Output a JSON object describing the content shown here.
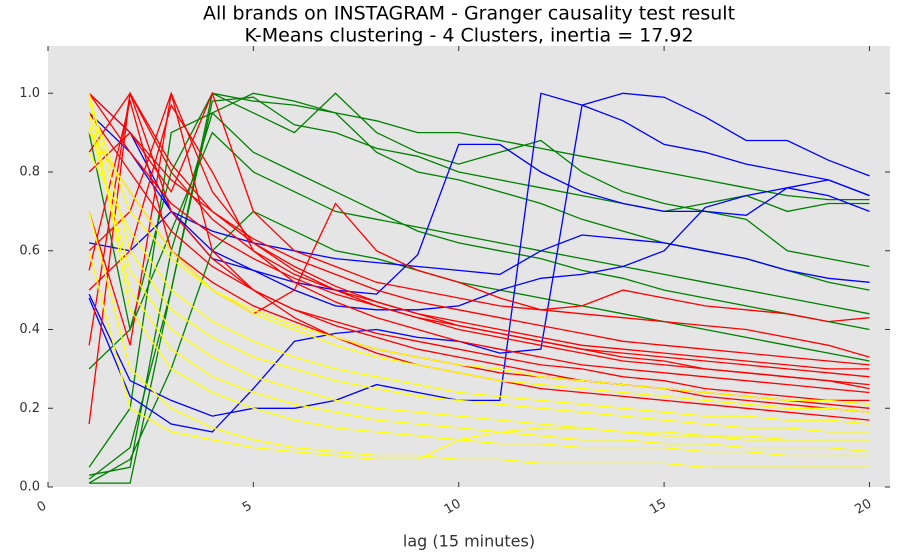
{
  "chart_data": {
    "type": "line",
    "title": "All brands on INSTAGRAM - Granger causality test result",
    "subtitle": "K-Means clustering - 4 Clusters, inertia = 17.92",
    "xlabel": "lag (15 minutes)",
    "x": [
      1,
      2,
      3,
      4,
      5,
      6,
      7,
      8,
      9,
      10,
      11,
      12,
      13,
      14,
      15,
      16,
      17,
      18,
      19,
      20
    ],
    "xlim": [
      0,
      20.5
    ],
    "xticks": [
      0,
      5,
      10,
      15,
      20
    ],
    "ylim": [
      0,
      1.12
    ],
    "yticks": [
      {
        "value": 0,
        "label": "0.0"
      },
      {
        "value": 0.2,
        "label": "0.2"
      },
      {
        "value": 0.4,
        "label": "0.4"
      },
      {
        "value": 0.6,
        "label": "0.6"
      },
      {
        "value": 0.8,
        "label": "0.8"
      },
      {
        "value": 1,
        "label": "1.0"
      }
    ],
    "grid": false,
    "series": [
      {
        "color": "#008000",
        "values": [
          0.01,
          0.01,
          0.5,
          1.0,
          0.98,
          0.97,
          0.95,
          0.93,
          0.9,
          0.9,
          0.88,
          0.86,
          0.84,
          0.82,
          0.8,
          0.78,
          0.76,
          0.74,
          0.73,
          0.73
        ]
      },
      {
        "color": "#008000",
        "values": [
          0.03,
          0.05,
          0.6,
          0.95,
          1.0,
          0.98,
          0.95,
          0.85,
          0.8,
          0.78,
          0.75,
          0.72,
          0.68,
          0.65,
          0.62,
          0.6,
          0.58,
          0.55,
          0.52,
          0.5
        ]
      },
      {
        "color": "#008000",
        "values": [
          0.3,
          0.4,
          0.8,
          1.0,
          0.95,
          0.9,
          1.0,
          0.9,
          0.85,
          0.82,
          0.85,
          0.88,
          0.8,
          0.75,
          0.72,
          0.7,
          0.68,
          0.6,
          0.58,
          0.56
        ]
      },
      {
        "color": "#008000",
        "values": [
          0.05,
          0.2,
          0.9,
          0.95,
          0.85,
          0.8,
          0.75,
          0.7,
          0.65,
          0.62,
          0.6,
          0.58,
          0.55,
          0.53,
          0.5,
          0.48,
          0.46,
          0.44,
          0.42,
          0.4
        ]
      },
      {
        "color": "#008000",
        "values": [
          0.01,
          0.07,
          0.3,
          0.6,
          0.7,
          0.65,
          0.6,
          0.58,
          0.55,
          0.52,
          0.5,
          0.48,
          0.46,
          0.44,
          0.42,
          0.4,
          0.38,
          0.36,
          0.34,
          0.32
        ]
      },
      {
        "color": "#008000",
        "values": [
          0.9,
          0.4,
          0.65,
          0.9,
          0.8,
          0.75,
          0.7,
          0.68,
          0.66,
          0.64,
          0.62,
          0.6,
          0.58,
          0.56,
          0.54,
          0.52,
          0.5,
          0.48,
          0.46,
          0.44
        ]
      },
      {
        "color": "#008000",
        "values": [
          0.02,
          0.1,
          0.5,
          0.98,
          0.99,
          0.92,
          0.9,
          0.86,
          0.84,
          0.8,
          0.78,
          0.76,
          0.74,
          0.72,
          0.7,
          0.72,
          0.74,
          0.7,
          0.72,
          0.72
        ]
      },
      {
        "color": "#0000ff",
        "values": [
          0.49,
          0.27,
          0.22,
          0.18,
          0.2,
          0.2,
          0.22,
          0.26,
          0.24,
          0.22,
          0.22,
          1.0,
          0.97,
          0.93,
          0.87,
          0.85,
          0.82,
          0.8,
          0.78,
          0.74
        ]
      },
      {
        "color": "#0000ff",
        "values": [
          0.48,
          0.23,
          0.16,
          0.14,
          0.25,
          0.37,
          0.39,
          0.4,
          0.38,
          0.37,
          0.34,
          0.35,
          0.97,
          1.0,
          0.99,
          0.94,
          0.88,
          0.88,
          0.83,
          0.79
        ]
      },
      {
        "color": "#0000ff",
        "values": [
          1.0,
          0.9,
          0.7,
          0.6,
          0.55,
          0.52,
          0.5,
          0.49,
          0.59,
          0.87,
          0.87,
          0.8,
          0.75,
          0.72,
          0.7,
          0.7,
          0.69,
          0.76,
          0.74,
          0.7
        ]
      },
      {
        "color": "#0000ff",
        "values": [
          0.62,
          0.6,
          0.7,
          0.58,
          0.55,
          0.5,
          0.46,
          0.45,
          0.45,
          0.46,
          0.5,
          0.53,
          0.54,
          0.56,
          0.6,
          0.71,
          0.74,
          0.76,
          0.78,
          0.74
        ]
      },
      {
        "color": "#0000ff",
        "values": [
          0.95,
          0.85,
          0.7,
          0.65,
          0.62,
          0.6,
          0.58,
          0.57,
          0.56,
          0.55,
          0.54,
          0.6,
          0.64,
          0.63,
          0.62,
          0.6,
          0.58,
          0.55,
          0.53,
          0.52
        ]
      },
      {
        "color": "#ff0000",
        "values": [
          1.0,
          0.85,
          0.72,
          0.64,
          0.58,
          0.53,
          0.49,
          0.46,
          0.43,
          0.41,
          0.39,
          0.37,
          0.35,
          0.34,
          0.33,
          0.32,
          0.31,
          0.3,
          0.29,
          0.28
        ]
      },
      {
        "color": "#ff0000",
        "values": [
          0.36,
          1.0,
          0.8,
          0.68,
          0.6,
          0.54,
          0.5,
          0.47,
          0.44,
          0.42,
          0.4,
          0.38,
          0.36,
          0.35,
          0.34,
          0.33,
          0.32,
          0.31,
          0.3,
          0.3
        ]
      },
      {
        "color": "#ff0000",
        "values": [
          0.6,
          0.7,
          1.0,
          0.75,
          0.62,
          0.55,
          0.5,
          0.46,
          0.43,
          0.4,
          0.38,
          0.36,
          0.34,
          0.32,
          0.31,
          0.3,
          0.29,
          0.28,
          0.27,
          0.26
        ]
      },
      {
        "color": "#ff0000",
        "values": [
          0.9,
          0.75,
          0.6,
          0.52,
          0.46,
          0.42,
          0.38,
          0.35,
          0.33,
          0.31,
          0.29,
          0.28,
          0.27,
          0.26,
          0.25,
          0.24,
          0.23,
          0.22,
          0.21,
          0.2
        ]
      },
      {
        "color": "#ff0000",
        "values": [
          0.16,
          1.0,
          0.7,
          0.58,
          0.5,
          0.45,
          0.41,
          0.38,
          0.35,
          0.33,
          0.31,
          0.29,
          0.27,
          0.26,
          0.25,
          0.23,
          0.22,
          0.21,
          0.2,
          0.19
        ]
      },
      {
        "color": "#ff0000",
        "values": [
          0.8,
          0.9,
          0.75,
          1.0,
          0.7,
          0.6,
          0.56,
          0.52,
          0.5,
          0.48,
          0.46,
          0.45,
          0.44,
          0.43,
          0.42,
          0.41,
          0.4,
          0.38,
          0.36,
          0.33
        ]
      },
      {
        "color": "#ff0000",
        "values": [
          0.95,
          0.8,
          0.65,
          0.56,
          0.5,
          0.45,
          0.42,
          0.39,
          0.37,
          0.35,
          0.33,
          0.31,
          0.3,
          0.28,
          0.27,
          0.25,
          0.24,
          0.23,
          0.22,
          0.22
        ]
      },
      {
        "color": "#ff0000",
        "values": [
          0.55,
          0.98,
          0.6,
          0.5,
          0.44,
          0.5,
          0.72,
          0.6,
          0.55,
          0.52,
          0.48,
          0.45,
          0.46,
          0.5,
          0.48,
          0.46,
          0.45,
          0.44,
          0.42,
          0.43
        ]
      },
      {
        "color": "#ff0000",
        "values": [
          1.0,
          0.9,
          0.78,
          0.7,
          0.63,
          0.58,
          0.54,
          0.5,
          0.47,
          0.45,
          0.43,
          0.41,
          0.39,
          0.37,
          0.36,
          0.35,
          0.34,
          0.33,
          0.32,
          0.31
        ]
      },
      {
        "color": "#ff0000",
        "values": [
          0.7,
          0.36,
          1.0,
          0.6,
          0.5,
          0.43,
          0.38,
          0.34,
          0.31,
          0.29,
          0.27,
          0.25,
          0.24,
          0.23,
          0.22,
          0.21,
          0.2,
          0.19,
          0.18,
          0.17
        ]
      },
      {
        "color": "#ff0000",
        "values": [
          0.85,
          1.0,
          0.82,
          0.7,
          0.62,
          0.56,
          0.51,
          0.47,
          0.44,
          0.41,
          0.39,
          0.37,
          0.35,
          0.33,
          0.32,
          0.3,
          0.29,
          0.28,
          0.27,
          0.25
        ]
      },
      {
        "color": "#ff0000",
        "values": [
          0.5,
          0.6,
          0.97,
          0.8,
          0.6,
          0.52,
          0.47,
          0.43,
          0.4,
          0.37,
          0.35,
          0.33,
          0.31,
          0.3,
          0.29,
          0.28,
          0.27,
          0.26,
          0.25,
          0.24
        ]
      },
      {
        "color": "#ffff00",
        "values": [
          1.0,
          0.6,
          0.45,
          0.38,
          0.33,
          0.3,
          0.27,
          0.25,
          0.23,
          0.22,
          0.21,
          0.2,
          0.19,
          0.18,
          0.17,
          0.16,
          0.15,
          0.15,
          0.14,
          0.14
        ]
      },
      {
        "color": "#ffff00",
        "values": [
          0.95,
          0.5,
          0.35,
          0.28,
          0.24,
          0.21,
          0.19,
          0.17,
          0.16,
          0.15,
          0.14,
          0.13,
          0.12,
          0.12,
          0.11,
          0.11,
          0.1,
          0.1,
          0.1,
          0.09
        ]
      },
      {
        "color": "#ffff00",
        "values": [
          0.9,
          0.75,
          0.6,
          0.5,
          0.44,
          0.4,
          0.36,
          0.33,
          0.31,
          0.29,
          0.27,
          0.26,
          0.25,
          0.24,
          0.23,
          0.22,
          0.21,
          0.2,
          0.2,
          0.19
        ]
      },
      {
        "color": "#ffff00",
        "values": [
          0.7,
          0.3,
          0.2,
          0.15,
          0.12,
          0.1,
          0.09,
          0.08,
          0.08,
          0.07,
          0.07,
          0.06,
          0.06,
          0.06,
          0.06,
          0.05,
          0.05,
          0.05,
          0.05,
          0.05
        ]
      },
      {
        "color": "#ffff00",
        "values": [
          1.0,
          0.45,
          0.3,
          0.24,
          0.2,
          0.17,
          0.15,
          0.14,
          0.13,
          0.12,
          0.11,
          0.11,
          0.1,
          0.1,
          0.1,
          0.09,
          0.09,
          0.08,
          0.08,
          0.08
        ]
      },
      {
        "color": "#ffff00",
        "values": [
          0.85,
          0.65,
          0.5,
          0.42,
          0.37,
          0.33,
          0.3,
          0.28,
          0.26,
          0.24,
          0.23,
          0.22,
          0.21,
          0.2,
          0.19,
          0.18,
          0.18,
          0.17,
          0.17,
          0.16
        ]
      },
      {
        "color": "#ffff00",
        "values": [
          0.98,
          0.7,
          0.58,
          0.5,
          0.45,
          0.41,
          0.38,
          0.35,
          0.33,
          0.31,
          0.3,
          0.28,
          0.27,
          0.26,
          0.25,
          0.24,
          0.23,
          0.22,
          0.22,
          0.21
        ]
      },
      {
        "color": "#ffff00",
        "values": [
          0.6,
          0.2,
          0.14,
          0.12,
          0.1,
          0.09,
          0.08,
          0.07,
          0.07,
          0.12,
          0.14,
          0.15,
          0.15,
          0.14,
          0.13,
          0.13,
          0.12,
          0.12,
          0.12,
          0.12
        ]
      },
      {
        "color": "#ffff00",
        "values": [
          0.92,
          0.55,
          0.4,
          0.33,
          0.28,
          0.25,
          0.22,
          0.2,
          0.19,
          0.18,
          0.17,
          0.16,
          0.15,
          0.14,
          0.14,
          0.13,
          0.13,
          0.12,
          0.12,
          0.12
        ]
      }
    ]
  }
}
